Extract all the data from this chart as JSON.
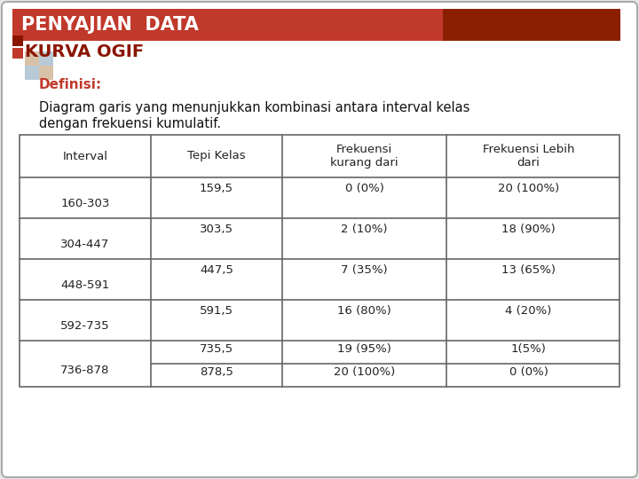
{
  "title_bar_text": "PENYAJIAN  DATA",
  "title_bar_color": "#C0392B",
  "title_bar_text_color": "#FFFFFF",
  "section_title": "KURVA OGIF",
  "section_title_color": "#8B1500",
  "definisi_label": "Definisi:",
  "definisi_label_color": "#C0392B",
  "definisi_line1": "Diagram garis yang menunjukkan kombinasi antara interval kelas",
  "definisi_line2": "dengan frekuensi kumulatif.",
  "definisi_text_color": "#111111",
  "table_headers": [
    "Interval",
    "Tepi Kelas",
    "Frekuensi\nkurang dari",
    "Frekuensi Lebih\ndari"
  ],
  "table_rows": [
    [
      "160-303",
      "159,5",
      "0 (0%)",
      "20 (100%)"
    ],
    [
      "304-447",
      "303,5",
      "2 (10%)",
      "18 (90%)"
    ],
    [
      "448-591",
      "447,5",
      "7 (35%)",
      "13 (65%)"
    ],
    [
      "592-735",
      "591,5",
      "16 (80%)",
      "4 (20%)"
    ],
    [
      "736-878",
      "735,5",
      "19 (95%)",
      "1(5%)"
    ],
    [
      "",
      "878,5",
      "20 (100%)",
      "0 (0%)"
    ]
  ],
  "table_border_color": "#666666",
  "table_text_color": "#222222",
  "card_bg": "#FFFFFF",
  "page_bg": "#E8E8E8",
  "title_bar_gradient_right": "#8B2000",
  "accent_col1": "#8B1500",
  "accent_col2": "#C0392B",
  "accent_col3": "#C8A882",
  "accent_col4": "#9BB4C8"
}
